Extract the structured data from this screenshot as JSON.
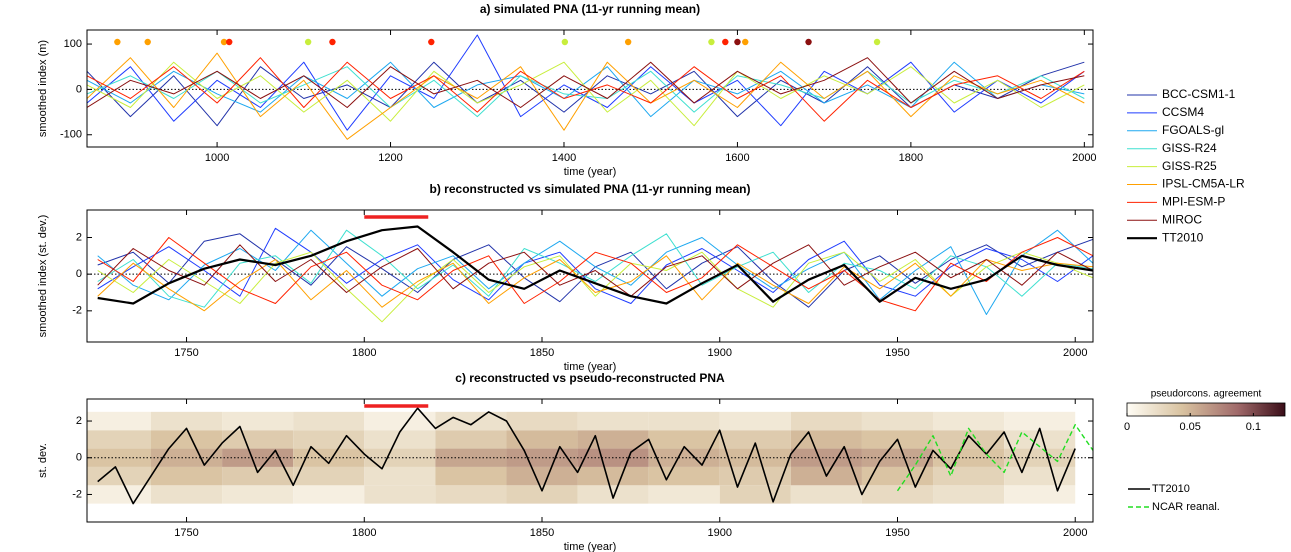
{
  "chart_data": [
    {
      "type": "line",
      "title": "a) simulated PNA (11-yr running mean)",
      "xlabel": "time (year)",
      "ylabel": "smoothed index (m)",
      "xlim": [
        850,
        2010
      ],
      "xticks": [
        1000,
        1200,
        1400,
        1600,
        1800,
        2000
      ],
      "ylim": [
        -127,
        131
      ],
      "yticks": [
        -100,
        0,
        100
      ],
      "zero_line": true,
      "x": [
        850,
        900,
        950,
        1000,
        1050,
        1100,
        1150,
        1200,
        1250,
        1300,
        1350,
        1400,
        1450,
        1500,
        1550,
        1600,
        1650,
        1700,
        1750,
        1800,
        1850,
        1900,
        1950,
        2000
      ],
      "series": [
        {
          "name": "BCC-CSM1-1",
          "color": "#2233aa",
          "values": [
            40,
            -60,
            30,
            -80,
            50,
            -20,
            10,
            -40,
            60,
            -30,
            20,
            -50,
            30,
            -10,
            40,
            -60,
            20,
            -30,
            50,
            -40,
            10,
            -20,
            30,
            60
          ]
        },
        {
          "name": "CCSM4",
          "color": "#1f3cff",
          "values": [
            -30,
            50,
            -70,
            20,
            -40,
            60,
            -90,
            30,
            -20,
            120,
            -60,
            10,
            -40,
            50,
            -30,
            20,
            -80,
            40,
            -10,
            60,
            -50,
            20,
            -30,
            40
          ]
        },
        {
          "name": "FGOALS-gl",
          "color": "#1ea8f0",
          "values": [
            20,
            -30,
            40,
            -10,
            -50,
            30,
            -20,
            60,
            -40,
            10,
            30,
            -20,
            50,
            -60,
            20,
            -10,
            40,
            -30,
            10,
            -40,
            60,
            -20,
            10,
            -10
          ]
        },
        {
          "name": "GISS-R24",
          "color": "#3fe0d0",
          "values": [
            -10,
            30,
            -20,
            40,
            -30,
            10,
            50,
            -40,
            20,
            -60,
            30,
            -10,
            -20,
            40,
            -50,
            30,
            10,
            -20,
            40,
            -30,
            20,
            -10,
            30,
            -20
          ]
        },
        {
          "name": "GISS-R25",
          "color": "#c8ee3c",
          "values": [
            10,
            -40,
            60,
            -20,
            30,
            -50,
            20,
            -70,
            40,
            -30,
            10,
            60,
            -50,
            20,
            -80,
            40,
            -20,
            30,
            -10,
            50,
            -30,
            20,
            -40,
            10
          ]
        },
        {
          "name": "IPSL-CM5A-LR",
          "color": "#ffa000",
          "values": [
            -20,
            70,
            -40,
            80,
            -60,
            20,
            -110,
            -40,
            30,
            -20,
            50,
            -90,
            60,
            -30,
            20,
            -40,
            60,
            -20,
            40,
            -60,
            30,
            -10,
            20,
            -30
          ]
        },
        {
          "name": "MPI-ESM-P",
          "color": "#ff2200",
          "values": [
            30,
            -20,
            50,
            -30,
            70,
            -40,
            60,
            -20,
            30,
            -50,
            40,
            -20,
            10,
            -30,
            50,
            -20,
            30,
            -70,
            20,
            -40,
            10,
            30,
            -20,
            40
          ]
        },
        {
          "name": "MIROC",
          "color": "#8b1010",
          "values": [
            -40,
            20,
            -10,
            40,
            -20,
            30,
            -40,
            50,
            -10,
            20,
            -40,
            30,
            -20,
            60,
            -30,
            40,
            -10,
            20,
            70,
            -30,
            40,
            -20,
            10,
            30
          ]
        }
      ],
      "markers": [
        {
          "x": 885,
          "color": "#ffa000"
        },
        {
          "x": 920,
          "color": "#ffa000"
        },
        {
          "x": 1008,
          "color": "#ffa000"
        },
        {
          "x": 1014,
          "color": "#ff2200"
        },
        {
          "x": 1105,
          "color": "#c8ee3c"
        },
        {
          "x": 1133,
          "color": "#ff2200"
        },
        {
          "x": 1247,
          "color": "#ff2200"
        },
        {
          "x": 1401,
          "color": "#c8ee3c"
        },
        {
          "x": 1474,
          "color": "#ffa000"
        },
        {
          "x": 1570,
          "color": "#c8ee3c"
        },
        {
          "x": 1586,
          "color": "#ff2200"
        },
        {
          "x": 1600,
          "color": "#8b1010"
        },
        {
          "x": 1609,
          "color": "#ffa000"
        },
        {
          "x": 1682,
          "color": "#8b1010"
        },
        {
          "x": 1761,
          "color": "#c8ee3c"
        }
      ]
    },
    {
      "type": "line",
      "title": "b) reconstructed vs simulated PNA (11-yr running mean)",
      "xlabel": "time (year)",
      "ylabel": "smoothed index (st. dev.)",
      "xlim": [
        1722,
        2005
      ],
      "xticks": [
        1750,
        1800,
        1850,
        1900,
        1950,
        2000
      ],
      "ylim": [
        -3.7,
        3.5
      ],
      "yticks": [
        -2,
        0,
        2
      ],
      "zero_line": true,
      "highlight": [
        1800,
        1818
      ],
      "highlight_color": "#ee2222",
      "x": [
        1725,
        1735,
        1745,
        1755,
        1765,
        1775,
        1785,
        1795,
        1805,
        1815,
        1825,
        1835,
        1845,
        1855,
        1865,
        1875,
        1885,
        1895,
        1905,
        1915,
        1925,
        1935,
        1945,
        1955,
        1965,
        1975,
        1985,
        1995,
        2005
      ],
      "series": [
        {
          "name": "BCC-CSM1-1",
          "color": "#2233aa",
          "values": [
            0.5,
            1.2,
            -0.5,
            1.8,
            2.2,
            0.8,
            -0.6,
            1.5,
            0.3,
            -1.0,
            0.8,
            1.6,
            -0.2,
            -1.5,
            0.4,
            1.2,
            -0.8,
            0.6,
            1.5,
            -0.4,
            -1.8,
            0.2,
            1.0,
            -0.5,
            0.8,
            1.6,
            0.4,
            1.2,
            1.9
          ]
        },
        {
          "name": "CCSM4",
          "color": "#1f3cff",
          "values": [
            -0.8,
            0.4,
            1.5,
            0.2,
            -1.2,
            2.5,
            1.2,
            -0.5,
            0.8,
            1.6,
            -0.3,
            -1.4,
            0.6,
            1.2,
            -0.8,
            -1.6,
            0.5,
            1.4,
            0.2,
            -1.0,
            0.8,
            1.8,
            -0.6,
            -1.2,
            0.4,
            1.4,
            0.8,
            -0.4,
            1.0
          ]
        },
        {
          "name": "FGOALS-gl",
          "color": "#1ea8f0",
          "values": [
            1.0,
            -0.6,
            -1.4,
            0.5,
            1.4,
            0.2,
            2.4,
            0.6,
            -1.2,
            0.3,
            1.0,
            -0.8,
            0.6,
            1.8,
            0.4,
            -0.6,
            1.2,
            2.0,
            0.5,
            -0.8,
            0.3,
            1.2,
            -1.4,
            0.2,
            1.5,
            -2.2,
            1.0,
            2.4,
            0.6
          ]
        },
        {
          "name": "GISS-R24",
          "color": "#3fe0d0",
          "values": [
            -0.4,
            0.8,
            -1.2,
            -1.8,
            0.6,
            1.0,
            -0.5,
            2.4,
            1.0,
            -0.8,
            0.5,
            -1.2,
            1.4,
            0.6,
            -0.4,
            1.0,
            2.2,
            -0.6,
            0.4,
            1.2,
            -1.0,
            0.6,
            0.2,
            -0.8,
            1.0,
            0.4,
            -1.2,
            0.6,
            0.3
          ]
        },
        {
          "name": "GISS-R25",
          "color": "#c8ee3c",
          "values": [
            0.2,
            -1.0,
            0.8,
            -0.4,
            -1.6,
            0.6,
            1.2,
            -0.8,
            -2.6,
            -0.6,
            0.8,
            -1.0,
            0.4,
            1.0,
            -1.2,
            0.6,
            0.2,
            1.2,
            -0.8,
            -1.8,
            0.6,
            1.2,
            -0.4,
            0.8,
            -1.2,
            0.4,
            1.2,
            0.6,
            -0.2
          ]
        },
        {
          "name": "IPSL-CM5A-LR",
          "color": "#ffa000",
          "values": [
            -1.2,
            0.6,
            -0.8,
            -2.0,
            -0.4,
            0.8,
            -1.4,
            0.2,
            -1.8,
            -0.4,
            0.6,
            -1.6,
            -0.2,
            0.8,
            -1.0,
            -0.4,
            1.0,
            -1.4,
            0.6,
            -0.6,
            -1.6,
            0.4,
            -0.8,
            0.6,
            -1.2,
            0.8,
            0.2,
            0.6,
            0.4
          ]
        },
        {
          "name": "MPI-ESM-P",
          "color": "#ff2200",
          "values": [
            0.8,
            -0.4,
            2.0,
            0.6,
            -0.8,
            -1.6,
            0.4,
            1.2,
            -0.6,
            -1.4,
            0.2,
            1.0,
            -1.6,
            -0.4,
            1.2,
            0.6,
            -1.0,
            -0.2,
            1.6,
            0.4,
            -0.8,
            0.2,
            -1.4,
            -2.0,
            0.6,
            -0.4,
            1.2,
            2.0,
            1.0
          ]
        },
        {
          "name": "MIROC",
          "color": "#8b1010",
          "values": [
            -0.6,
            1.4,
            0.2,
            -0.6,
            1.6,
            -0.4,
            0.8,
            -1.0,
            0.4,
            1.4,
            -0.8,
            0.6,
            1.2,
            -0.6,
            0.2,
            -1.2,
            0.4,
            1.0,
            -0.8,
            0.6,
            1.6,
            -0.6,
            0.4,
            1.2,
            -0.2,
            0.8,
            -0.6,
            1.2,
            0.2
          ]
        },
        {
          "name": "TT2010",
          "color": "#000000",
          "width": 2.2,
          "values": [
            -1.3,
            -1.6,
            -0.5,
            0.3,
            0.8,
            0.5,
            1.0,
            1.8,
            2.4,
            2.6,
            1.2,
            -0.3,
            -0.8,
            0.2,
            -0.5,
            -1.2,
            -1.6,
            -0.5,
            0.5,
            -1.5,
            -0.3,
            0.5,
            -1.5,
            -0.2,
            -0.8,
            -0.3,
            1.0,
            0.5,
            0.2
          ]
        }
      ]
    },
    {
      "type": "heatmap_line",
      "title": "c) reconstructed vs pseudo-reconstructed PNA",
      "xlabel": "time (year)",
      "ylabel": "st. dev.",
      "xlim": [
        1722,
        2005
      ],
      "xticks": [
        1750,
        1800,
        1850,
        1900,
        1950,
        2000
      ],
      "ylim": [
        -3.5,
        3.2
      ],
      "yticks": [
        -2,
        0,
        2
      ],
      "zero_line": true,
      "highlight": [
        1800,
        1818
      ],
      "highlight_color": "#ee2222",
      "heatmap": {
        "title": "pseudorcons. agreement",
        "clim": [
          0,
          0.125
        ],
        "cticks": [
          0,
          0.05,
          0.1
        ],
        "x": [
          1730,
          1750,
          1770,
          1790,
          1810,
          1830,
          1850,
          1870,
          1890,
          1910,
          1930,
          1950,
          1970,
          1990
        ],
        "y": [
          -2,
          -1,
          0,
          1,
          2
        ],
        "values": [
          [
            0.01,
            0.02,
            0.015,
            0.01,
            0.02,
            0.025,
            0.03,
            0.02,
            0.015,
            0.03,
            0.02,
            0.025,
            0.02,
            0.01
          ],
          [
            0.03,
            0.04,
            0.035,
            0.03,
            0.02,
            0.04,
            0.05,
            0.045,
            0.04,
            0.035,
            0.05,
            0.04,
            0.03,
            0.02
          ],
          [
            0.04,
            0.05,
            0.06,
            0.04,
            0.03,
            0.055,
            0.06,
            0.065,
            0.05,
            0.045,
            0.06,
            0.055,
            0.04,
            0.03
          ],
          [
            0.03,
            0.04,
            0.035,
            0.03,
            0.02,
            0.035,
            0.045,
            0.05,
            0.04,
            0.035,
            0.045,
            0.04,
            0.035,
            0.02
          ],
          [
            0.01,
            0.02,
            0.015,
            0.02,
            0.01,
            0.02,
            0.025,
            0.02,
            0.02,
            0.015,
            0.025,
            0.02,
            0.015,
            0.01
          ]
        ]
      },
      "series": [
        {
          "name": "TT2010",
          "color": "#000000",
          "width": 1.6,
          "x": [
            1725,
            1730,
            1735,
            1740,
            1745,
            1750,
            1755,
            1760,
            1765,
            1770,
            1775,
            1780,
            1785,
            1790,
            1795,
            1800,
            1805,
            1810,
            1815,
            1820,
            1825,
            1830,
            1835,
            1840,
            1845,
            1850,
            1855,
            1860,
            1865,
            1870,
            1875,
            1880,
            1885,
            1890,
            1895,
            1900,
            1905,
            1910,
            1915,
            1920,
            1925,
            1930,
            1935,
            1940,
            1945,
            1950,
            1955,
            1960,
            1965,
            1970,
            1975,
            1980,
            1985,
            1990,
            1995,
            2000
          ],
          "values": [
            -1.3,
            -0.5,
            -2.5,
            -1.0,
            0.5,
            1.6,
            -0.4,
            0.8,
            1.7,
            -0.8,
            0.4,
            -1.5,
            0.6,
            -0.3,
            1.2,
            0.2,
            -0.6,
            1.4,
            2.7,
            1.6,
            2.2,
            1.8,
            2.5,
            2.0,
            0.4,
            -1.8,
            0.6,
            -0.8,
            1.2,
            -2.2,
            0.3,
            1.0,
            -1.2,
            0.6,
            -0.4,
            1.5,
            -1.6,
            0.8,
            -2.4,
            0.2,
            1.4,
            -1.0,
            0.6,
            -2.0,
            -0.2,
            1.0,
            -1.6,
            0.4,
            -0.6,
            1.2,
            0.2,
            1.4,
            -0.8,
            1.6,
            -1.8,
            0.5
          ]
        },
        {
          "name": "NCAR reanal.",
          "color": "#22dd22",
          "width": 1.4,
          "dashed": true,
          "x": [
            1950,
            1955,
            1960,
            1965,
            1970,
            1975,
            1980,
            1985,
            1990,
            1995,
            2000,
            2005
          ],
          "values": [
            -1.8,
            -0.4,
            1.2,
            -1.0,
            1.6,
            0.2,
            -0.8,
            1.4,
            0.6,
            -0.2,
            1.8,
            0.4
          ]
        }
      ]
    }
  ]
}
